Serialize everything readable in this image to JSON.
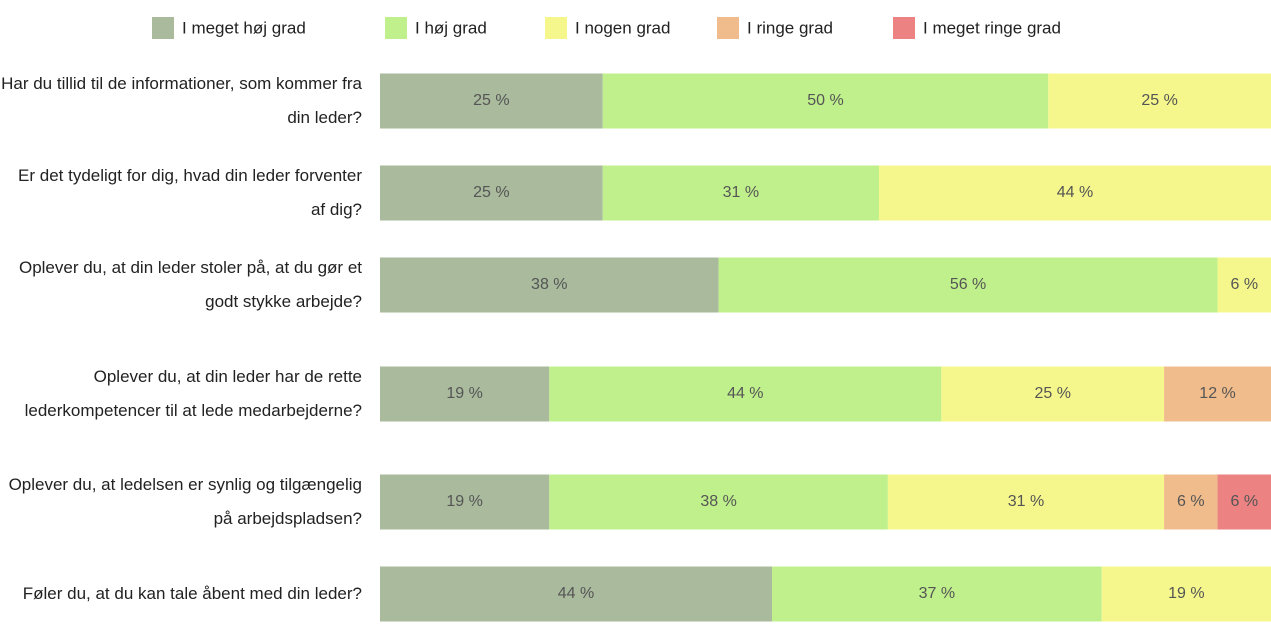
{
  "chart_data": {
    "type": "stacked-bar-horizontal",
    "categories": [
      "Har du tillid til de informationer, som kommer fra din leder?",
      "Er det tydeligt for dig, hvad din leder forventer af dig?",
      "Oplever du, at din leder stoler på, at du gør et godt stykke arbejde?",
      "Oplever du, at din leder har de rette lederkompetencer til at lede medarbejderne?",
      "Oplever du, at ledelsen er synlig og tilgængelig på arbejdspladsen?",
      "Føler du, at du kan tale åbent med din leder?"
    ],
    "series": [
      {
        "name": "I meget høj grad",
        "color": "#a9ba9d",
        "values": [
          25,
          25,
          38,
          19,
          19,
          44
        ],
        "value_labels": [
          "25 %",
          "25 %",
          "38 %",
          "19 %",
          "19 %",
          "44 %"
        ]
      },
      {
        "name": "I høj grad",
        "color": "#c0f08c",
        "values": [
          50,
          31,
          56,
          44,
          38,
          37
        ],
        "value_labels": [
          "50 %",
          "31 %",
          "56 %",
          "44 %",
          "38 %",
          "37 %"
        ]
      },
      {
        "name": "I nogen grad",
        "color": "#f5f78c",
        "values": [
          25,
          44,
          6,
          25,
          31,
          19
        ],
        "value_labels": [
          "25 %",
          "44 %",
          "6 %",
          "25 %",
          "31 %",
          "19 %"
        ]
      },
      {
        "name": "I ringe grad",
        "color": "#f0bc8c",
        "values": [
          null,
          null,
          null,
          12,
          6,
          null
        ],
        "value_labels": [
          null,
          null,
          null,
          "12 %",
          "6 %",
          null
        ]
      },
      {
        "name": "I meget ringe grad",
        "color": "#ec8282",
        "values": [
          null,
          null,
          null,
          null,
          6,
          null
        ],
        "value_labels": [
          null,
          null,
          null,
          null,
          "6 %",
          null
        ]
      }
    ],
    "xlim": [
      0,
      100
    ],
    "legend": "top"
  }
}
